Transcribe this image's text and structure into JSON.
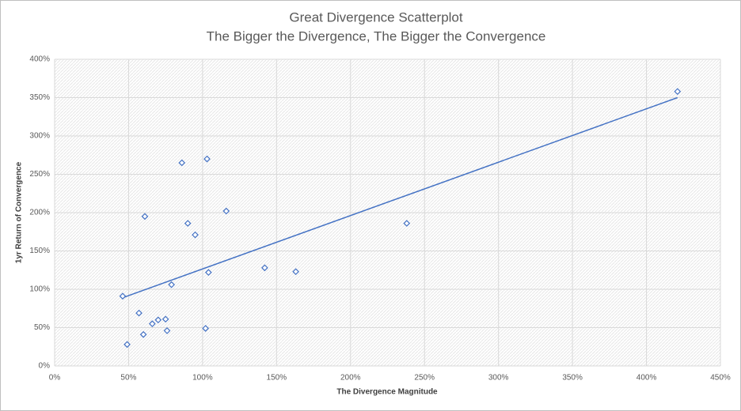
{
  "chart_data": {
    "type": "scatter",
    "title": "Great Divergence Scatterplot",
    "subtitle": "The Bigger the Divergence, The Bigger the Convergence",
    "x_label": "The Divergence Magnitude",
    "y_label": "1yr Return of Convergence",
    "color": "#4472c4",
    "grid": true,
    "x": [
      46,
      49,
      57,
      60,
      61,
      66,
      70,
      75,
      76,
      79,
      86,
      90,
      95,
      102,
      103,
      104,
      116,
      142,
      163,
      238,
      421
    ],
    "y": [
      91,
      28,
      69,
      41,
      195,
      55,
      60,
      61,
      46,
      106,
      265,
      186,
      171,
      49,
      270,
      122,
      202,
      128,
      123,
      186,
      358
    ],
    "trendline": {
      "x": [
        46,
        421
      ],
      "y": [
        89,
        350
      ]
    },
    "xlim": [
      0,
      450
    ],
    "ylim": [
      0,
      400
    ],
    "xticks": [
      {
        "value": 0,
        "label": "0%"
      },
      {
        "value": 50,
        "label": "50%"
      },
      {
        "value": 100,
        "label": "100%"
      },
      {
        "value": 150,
        "label": "150%"
      },
      {
        "value": 200,
        "label": "200%"
      },
      {
        "value": 250,
        "label": "250%"
      },
      {
        "value": 300,
        "label": "300%"
      },
      {
        "value": 350,
        "label": "350%"
      },
      {
        "value": 400,
        "label": "400%"
      },
      {
        "value": 450,
        "label": "450%"
      }
    ],
    "yticks": [
      {
        "value": 0,
        "label": "0%"
      },
      {
        "value": 50,
        "label": "50%"
      },
      {
        "value": 100,
        "label": "100%"
      },
      {
        "value": 150,
        "label": "150%"
      },
      {
        "value": 200,
        "label": "200%"
      },
      {
        "value": 250,
        "label": "250%"
      },
      {
        "value": 300,
        "label": "300%"
      },
      {
        "value": 350,
        "label": "350%"
      },
      {
        "value": 400,
        "label": "400%"
      }
    ]
  }
}
